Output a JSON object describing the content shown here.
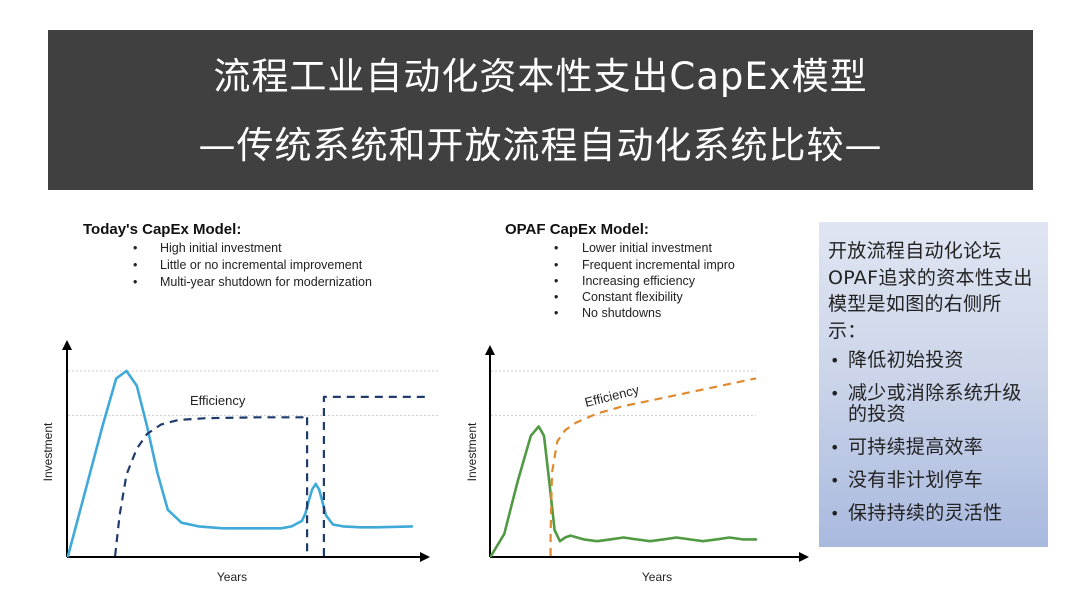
{
  "title": {
    "line1": "流程工业自动化资本性支出CapEx模型",
    "line2": "—传统系统和开放流程自动化系统比较—"
  },
  "chart_data": [
    {
      "type": "line",
      "title": "Today's CapEx Model:",
      "bullets": [
        "High initial investment",
        "Little or no incremental improvement",
        "Multi-year shutdown for modernization"
      ],
      "xlabel": "Years",
      "ylabel": "Investment",
      "xlim": [
        0,
        100
      ],
      "ylim": [
        0,
        100
      ],
      "series": [
        {
          "name": "Investment",
          "color": "#3fa9d8",
          "style": "solid",
          "x": [
            0,
            5,
            10,
            14,
            17,
            20,
            23,
            26,
            29,
            33,
            38,
            45,
            55,
            62,
            65,
            68,
            69,
            70,
            71,
            72,
            73,
            74,
            75,
            77,
            80,
            85,
            90,
            100
          ],
          "y": [
            0,
            35,
            70,
            96,
            100,
            92,
            70,
            45,
            25,
            18,
            16,
            15,
            15,
            15,
            16,
            19,
            23,
            30,
            36,
            39,
            36,
            29,
            22,
            17,
            16,
            15.5,
            15.5,
            16
          ]
        },
        {
          "name": "Efficiency",
          "label": "Efficiency",
          "color": "#1f3a6b",
          "style": "dashed",
          "segments": [
            {
              "x": [
                13.7,
                15,
                17,
                20,
                23,
                27,
                32,
                40,
                55,
                69.5
              ],
              "y": [
                0,
                22,
                44,
                58,
                66,
                71,
                73.5,
                74.5,
                75,
                75
              ]
            },
            {
              "x": [
                69.5,
                69.5
              ],
              "y": [
                75,
                0
              ]
            },
            {
              "x": [
                74.4,
                74.4,
                104
              ],
              "y": [
                0,
                86,
                86
              ]
            }
          ]
        }
      ],
      "guides": [
        {
          "y": 100,
          "color": "#cccccc"
        },
        {
          "y": 76,
          "color": "#cccccc"
        }
      ]
    },
    {
      "type": "line",
      "title": "OPAF CapEx Model:",
      "bullets": [
        "Lower initial investment",
        "Frequent incremental impro",
        "Increasing efficiency",
        "Constant flexibility",
        "No shutdowns"
      ],
      "xlabel": "Years",
      "ylabel": "Investment",
      "xlim": [
        0,
        100
      ],
      "ylim": [
        0,
        100
      ],
      "series": [
        {
          "name": "Investment",
          "color": "#4f9a42",
          "style": "solid",
          "x": [
            0,
            5,
            10,
            15,
            18,
            20,
            22,
            24,
            26,
            28,
            30,
            35,
            40,
            45,
            50,
            55,
            60,
            65,
            70,
            75,
            80,
            85,
            90,
            95,
            100
          ],
          "y": [
            0,
            12,
            40,
            65,
            70,
            65,
            40,
            14,
            8,
            10,
            11,
            9,
            8,
            9,
            10,
            9,
            8,
            9,
            10,
            9,
            8,
            9,
            10,
            9,
            9
          ],
          "peak": 70
        },
        {
          "name": "Efficiency",
          "label": "Efficiency",
          "color": "#e08a30",
          "style": "dashed",
          "x": [
            22.5,
            22.5,
            23,
            25,
            28,
            32,
            40,
            50,
            60,
            70,
            80,
            90,
            100
          ],
          "y": [
            0,
            12,
            45,
            62,
            68,
            72,
            77,
            81,
            84,
            87,
            90,
            93,
            96
          ]
        }
      ],
      "guides": [
        {
          "y": 100,
          "color": "#cccccc"
        },
        {
          "y": 76,
          "color": "#cccccc"
        }
      ]
    }
  ],
  "info": {
    "intro": "开放流程自动化论坛OPAF追求的资本性支出模型是如图的右侧所示：",
    "items": [
      "降低初始投资",
      "减少或消除系统升级的投资",
      "可持续提高效率",
      "没有非计划停车",
      "保持持续的灵活性"
    ]
  }
}
